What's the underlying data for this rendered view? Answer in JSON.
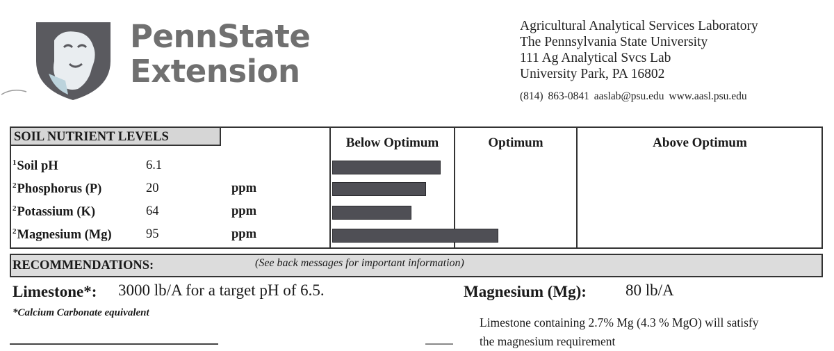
{
  "header": {
    "brand_line1": "PennState",
    "brand_line2": "Extension",
    "address": [
      "Agricultural Analytical Services Laboratory",
      "The Pennsylvania State University",
      "111 Ag Analytical Svcs Lab",
      "University Park, PA 16802"
    ],
    "contact": "(814) 863-0841   aaslab@psu.edu   www.aasl.psu.edu"
  },
  "nutrients": {
    "section_title": "SOIL  NUTRIENT LEVELS",
    "columns": [
      "Below Optimum",
      "Optimum",
      "Above Optimum"
    ],
    "rows": [
      {
        "note": "1",
        "label": "Soil pH",
        "value": "6.1",
        "unit": "",
        "level_pct": 30
      },
      {
        "note": "2",
        "label": "Phosphorus (P)",
        "value": "20",
        "unit": "ppm",
        "level_pct": 26
      },
      {
        "note": "2",
        "label": "Potassium (K)",
        "value": "64",
        "unit": "ppm",
        "level_pct": 22
      },
      {
        "note": "2",
        "label": "Magnesium (Mg)",
        "value": "95",
        "unit": "ppm",
        "level_pct": 46
      }
    ],
    "bar_color": "#4f4f55"
  },
  "recommendations": {
    "title": "RECOMMENDATIONS:",
    "note": "(See back messages for important information)",
    "limestone_label": "Limestone*:",
    "limestone_text": "3000 lb/A for a target pH of 6.5.",
    "footnote": "*Calcium Carbonate equivalent",
    "mg_label": "Magnesium (Mg):",
    "mg_value": "80 lb/A",
    "mg_note": [
      "Limestone containing 2.7% Mg (4.3  % MgO)  will satisfy",
      "the magnesium requirement"
    ]
  }
}
